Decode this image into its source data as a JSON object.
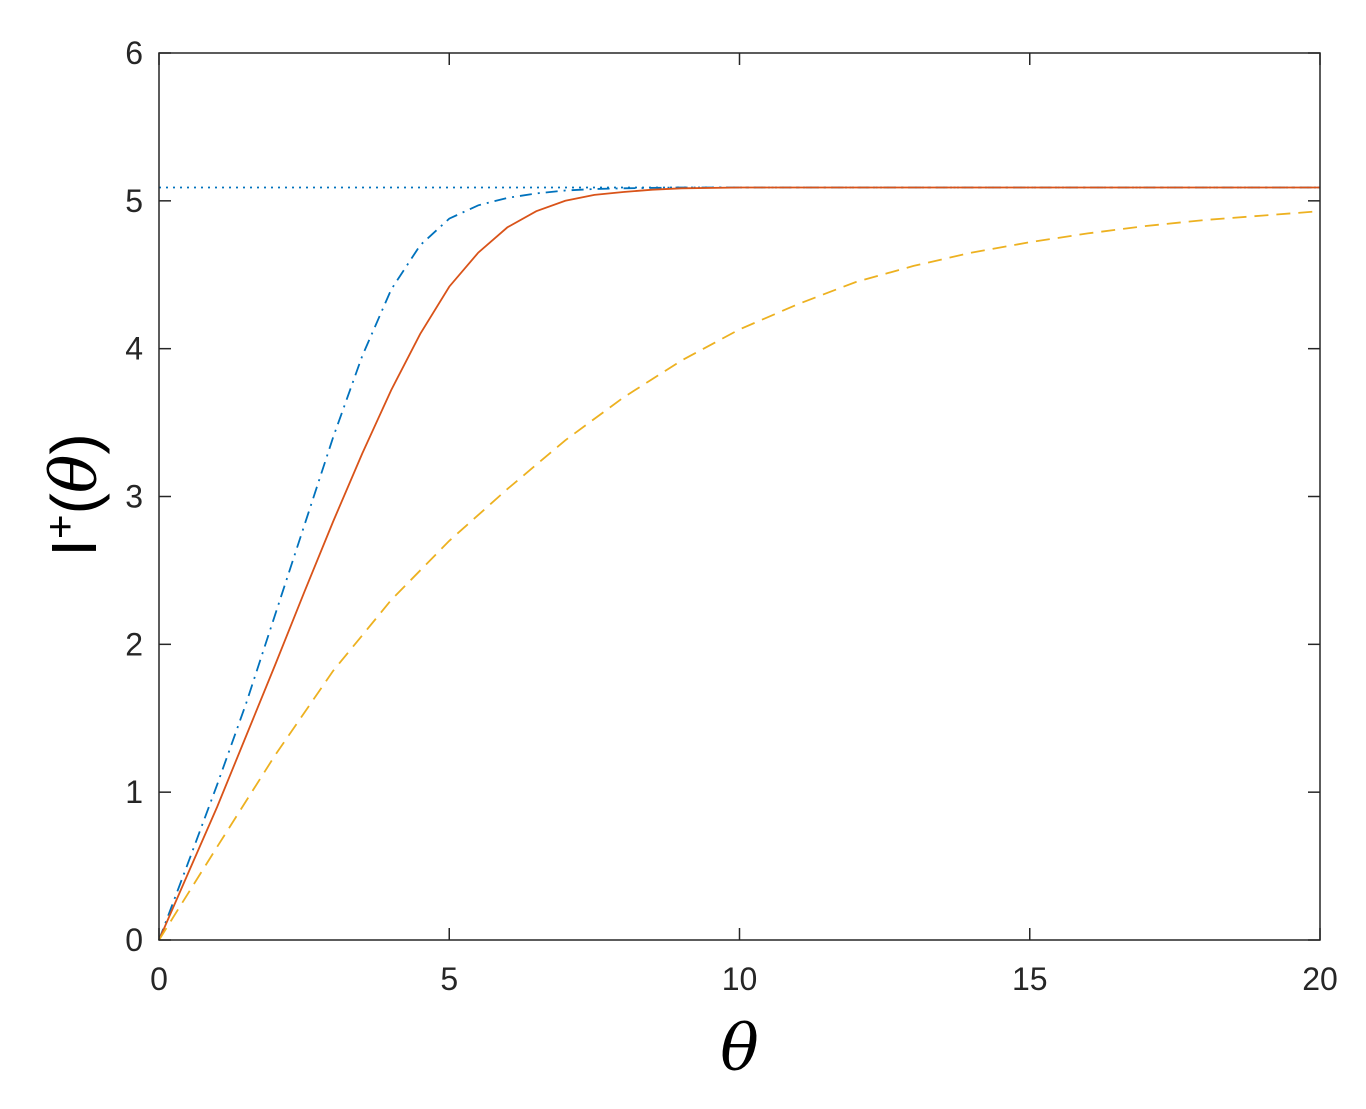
{
  "chart_data": {
    "type": "line",
    "title": "",
    "xlabel": "θ",
    "ylabel": {
      "base": "I",
      "sup": "+",
      "open": "(",
      "var": "θ",
      "close": ")"
    },
    "xlim": [
      0,
      20
    ],
    "ylim": [
      0,
      6
    ],
    "xticks": [
      0,
      5,
      10,
      15,
      20
    ],
    "yticks": [
      0,
      1,
      2,
      3,
      4,
      5,
      6
    ],
    "grid": false,
    "legend": "none",
    "series": [
      {
        "style": "dotted",
        "color": "#0072BD",
        "x": [
          0,
          20
        ],
        "y": [
          5.09,
          5.09
        ]
      },
      {
        "style": "dashdot",
        "color": "#0072BD",
        "x": [
          0,
          0.5,
          1,
          1.5,
          2,
          2.5,
          3,
          3.5,
          4,
          4.5,
          5,
          5.5,
          6,
          6.5,
          7,
          7.5,
          8,
          9,
          10,
          20
        ],
        "y": [
          0,
          0.52,
          1.05,
          1.6,
          2.2,
          2.8,
          3.4,
          3.95,
          4.4,
          4.7,
          4.88,
          4.97,
          5.02,
          5.05,
          5.07,
          5.08,
          5.085,
          5.09,
          5.09,
          5.09
        ]
      },
      {
        "style": "solid",
        "color": "#D95319",
        "x": [
          0,
          0.5,
          1,
          1.5,
          2,
          2.5,
          3,
          3.5,
          4,
          4.5,
          5,
          5.5,
          6,
          6.5,
          7,
          7.5,
          8,
          8.5,
          9,
          10,
          11,
          20
        ],
        "y": [
          0,
          0.45,
          0.9,
          1.38,
          1.86,
          2.35,
          2.83,
          3.29,
          3.72,
          4.1,
          4.42,
          4.65,
          4.82,
          4.93,
          5.0,
          5.04,
          5.06,
          5.075,
          5.085,
          5.09,
          5.09,
          5.09
        ]
      },
      {
        "style": "dashed",
        "color": "#EDB120",
        "x": [
          0,
          1,
          2,
          3,
          4,
          5,
          6,
          7,
          8,
          9,
          10,
          11,
          12,
          13,
          14,
          15,
          16,
          17,
          18,
          19,
          20
        ],
        "y": [
          0,
          0.63,
          1.25,
          1.82,
          2.3,
          2.7,
          3.05,
          3.38,
          3.67,
          3.92,
          4.13,
          4.3,
          4.45,
          4.56,
          4.65,
          4.72,
          4.78,
          4.83,
          4.87,
          4.9,
          4.93
        ]
      }
    ]
  }
}
